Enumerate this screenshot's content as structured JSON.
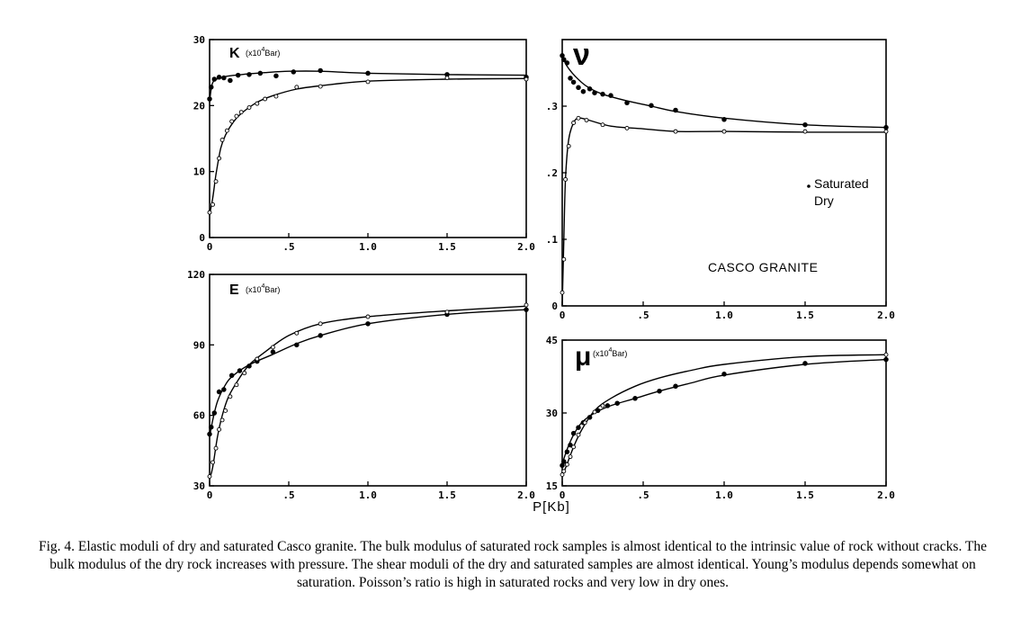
{
  "figure": {
    "xlabel": "P[Kb]",
    "legend": {
      "saturated": "Saturated",
      "dry": "Dry"
    },
    "annotation": "CASCO GRANITE",
    "caption": "Fig. 4. Elastic moduli of dry and saturated Casco granite. The bulk modulus of saturated rock samples is almost identical to the intrinsic value of rock without cracks. The bulk modulus of the dry rock increases with pressure. The shear moduli of the dry and saturated samples are almost identical. Young’s modulus depends somewhat on saturation. Poisson’s ratio is high in saturated rocks and very low in dry ones."
  },
  "chart_data": [
    {
      "id": "K",
      "type": "line",
      "symbol": "K",
      "unit_prefix": "(x10",
      "unit_exp": "4",
      "unit_suffix": "Bar)",
      "xlim": [
        0,
        2.0
      ],
      "ylim": [
        0,
        30
      ],
      "xticks": [
        0,
        0.5,
        1.0,
        1.5,
        2.0
      ],
      "xtick_labels": [
        "0",
        ".5",
        "1.0",
        "1.5",
        "2.0"
      ],
      "yticks": [
        0,
        10,
        20,
        30
      ],
      "ytick_labels": [
        "0",
        "10",
        "20",
        "30"
      ],
      "series": [
        {
          "name": "Saturated",
          "marker": "filled",
          "curve": [
            [
              0,
              20.5
            ],
            [
              0.01,
              22.5
            ],
            [
              0.03,
              23.8
            ],
            [
              0.1,
              24.4
            ],
            [
              0.2,
              24.7
            ],
            [
              0.35,
              25.0
            ],
            [
              0.5,
              25.2
            ],
            [
              0.7,
              25.2
            ],
            [
              1.0,
              24.9
            ],
            [
              1.5,
              24.7
            ],
            [
              2.0,
              24.6
            ]
          ],
          "points": [
            [
              0.0,
              21.0
            ],
            [
              0.01,
              22.8
            ],
            [
              0.03,
              24.0
            ],
            [
              0.06,
              24.3
            ],
            [
              0.09,
              24.2
            ],
            [
              0.13,
              23.8
            ],
            [
              0.18,
              24.6
            ],
            [
              0.25,
              24.7
            ],
            [
              0.32,
              24.9
            ],
            [
              0.42,
              24.5
            ],
            [
              0.53,
              25.1
            ],
            [
              0.7,
              25.3
            ],
            [
              1.0,
              24.9
            ],
            [
              1.5,
              24.7
            ],
            [
              2.0,
              24.3
            ]
          ]
        },
        {
          "name": "Dry",
          "marker": "open",
          "curve": [
            [
              0,
              3.5
            ],
            [
              0.02,
              6
            ],
            [
              0.04,
              9.5
            ],
            [
              0.07,
              13.5
            ],
            [
              0.1,
              15.5
            ],
            [
              0.15,
              17.5
            ],
            [
              0.2,
              18.8
            ],
            [
              0.3,
              20.5
            ],
            [
              0.4,
              21.5
            ],
            [
              0.55,
              22.5
            ],
            [
              0.7,
              23.0
            ],
            [
              1.0,
              23.7
            ],
            [
              1.5,
              24.0
            ],
            [
              2.0,
              24.1
            ]
          ],
          "points": [
            [
              0.0,
              3.8
            ],
            [
              0.02,
              5.0
            ],
            [
              0.04,
              8.5
            ],
            [
              0.06,
              12.0
            ],
            [
              0.08,
              14.8
            ],
            [
              0.11,
              16.2
            ],
            [
              0.14,
              17.6
            ],
            [
              0.17,
              18.4
            ],
            [
              0.2,
              19.0
            ],
            [
              0.25,
              19.7
            ],
            [
              0.3,
              20.3
            ],
            [
              0.35,
              21.0
            ],
            [
              0.42,
              21.4
            ],
            [
              0.55,
              22.8
            ],
            [
              0.7,
              22.9
            ],
            [
              1.0,
              23.6
            ],
            [
              1.5,
              24.2
            ],
            [
              2.0,
              24.0
            ]
          ]
        }
      ]
    },
    {
      "id": "nu",
      "type": "line",
      "symbol": "ν",
      "xlim": [
        0,
        2.0
      ],
      "ylim": [
        0,
        0.4
      ],
      "xticks": [
        0,
        0.5,
        1.0,
        1.5,
        2.0
      ],
      "xtick_labels": [
        "0",
        ".5",
        "1.0",
        "1.5",
        "2.0"
      ],
      "yticks": [
        0,
        0.1,
        0.2,
        0.3
      ],
      "ytick_labels": [
        "0",
        ".1",
        ".2",
        ".3"
      ],
      "series": [
        {
          "name": "Saturated",
          "marker": "filled",
          "curve": [
            [
              0,
              0.375
            ],
            [
              0.03,
              0.36
            ],
            [
              0.08,
              0.345
            ],
            [
              0.15,
              0.33
            ],
            [
              0.25,
              0.318
            ],
            [
              0.4,
              0.308
            ],
            [
              0.55,
              0.3
            ],
            [
              0.7,
              0.292
            ],
            [
              1.0,
              0.282
            ],
            [
              1.5,
              0.272
            ],
            [
              2.0,
              0.268
            ]
          ],
          "points": [
            [
              0.0,
              0.376
            ],
            [
              0.01,
              0.37
            ],
            [
              0.03,
              0.365
            ],
            [
              0.05,
              0.342
            ],
            [
              0.07,
              0.336
            ],
            [
              0.1,
              0.328
            ],
            [
              0.13,
              0.322
            ],
            [
              0.17,
              0.326
            ],
            [
              0.2,
              0.32
            ],
            [
              0.25,
              0.318
            ],
            [
              0.3,
              0.316
            ],
            [
              0.4,
              0.305
            ],
            [
              0.55,
              0.301
            ],
            [
              0.7,
              0.294
            ],
            [
              1.0,
              0.28
            ],
            [
              1.5,
              0.272
            ],
            [
              2.0,
              0.268
            ]
          ]
        },
        {
          "name": "Dry",
          "marker": "open",
          "curve": [
            [
              0,
              0.0
            ],
            [
              0.01,
              0.1
            ],
            [
              0.02,
              0.19
            ],
            [
              0.04,
              0.25
            ],
            [
              0.07,
              0.275
            ],
            [
              0.1,
              0.282
            ],
            [
              0.15,
              0.28
            ],
            [
              0.3,
              0.27
            ],
            [
              0.5,
              0.266
            ],
            [
              0.7,
              0.262
            ],
            [
              1.0,
              0.262
            ],
            [
              1.5,
              0.261
            ],
            [
              2.0,
              0.261
            ]
          ],
          "points": [
            [
              0.0,
              0.02
            ],
            [
              0.01,
              0.07
            ],
            [
              0.02,
              0.19
            ],
            [
              0.04,
              0.24
            ],
            [
              0.07,
              0.275
            ],
            [
              0.1,
              0.282
            ],
            [
              0.15,
              0.279
            ],
            [
              0.25,
              0.272
            ],
            [
              0.4,
              0.267
            ],
            [
              0.7,
              0.262
            ],
            [
              1.0,
              0.262
            ],
            [
              1.5,
              0.262
            ],
            [
              2.0,
              0.262
            ]
          ]
        }
      ]
    },
    {
      "id": "E",
      "type": "line",
      "symbol": "E",
      "unit_prefix": "(x10",
      "unit_exp": "4",
      "unit_suffix": "Bar)",
      "xlim": [
        0,
        2.0
      ],
      "ylim": [
        30,
        120
      ],
      "xticks": [
        0,
        0.5,
        1.0,
        1.5,
        2.0
      ],
      "xtick_labels": [
        "0",
        ".5",
        "1.0",
        "1.5",
        "2.0"
      ],
      "yticks": [
        30,
        60,
        90,
        120
      ],
      "ytick_labels": [
        "30",
        "60",
        "90",
        "120"
      ],
      "series": [
        {
          "name": "Saturated",
          "marker": "filled",
          "curve": [
            [
              0,
              51
            ],
            [
              0.02,
              58
            ],
            [
              0.05,
              66
            ],
            [
              0.1,
              73
            ],
            [
              0.15,
              77
            ],
            [
              0.25,
              81.5
            ],
            [
              0.4,
              86
            ],
            [
              0.55,
              90.5
            ],
            [
              0.7,
              94
            ],
            [
              1.0,
              99
            ],
            [
              1.5,
              103
            ],
            [
              2.0,
              105
            ]
          ],
          "points": [
            [
              0.0,
              52
            ],
            [
              0.01,
              55
            ],
            [
              0.03,
              61
            ],
            [
              0.06,
              70
            ],
            [
              0.09,
              71
            ],
            [
              0.14,
              77
            ],
            [
              0.19,
              79
            ],
            [
              0.25,
              81
            ],
            [
              0.3,
              83
            ],
            [
              0.4,
              87
            ],
            [
              0.55,
              90
            ],
            [
              0.7,
              94
            ],
            [
              1.0,
              99
            ],
            [
              1.5,
              103
            ],
            [
              2.0,
              105
            ]
          ]
        },
        {
          "name": "Dry",
          "marker": "open",
          "curve": [
            [
              0,
              33
            ],
            [
              0.02,
              38
            ],
            [
              0.05,
              51
            ],
            [
              0.08,
              60
            ],
            [
              0.12,
              68
            ],
            [
              0.18,
              75
            ],
            [
              0.25,
              81.5
            ],
            [
              0.35,
              87
            ],
            [
              0.5,
              94
            ],
            [
              0.7,
              99
            ],
            [
              1.0,
              102
            ],
            [
              1.5,
              104.5
            ],
            [
              2.0,
              106.5
            ]
          ],
          "points": [
            [
              0.0,
              34
            ],
            [
              0.02,
              40
            ],
            [
              0.04,
              46
            ],
            [
              0.06,
              54
            ],
            [
              0.08,
              58
            ],
            [
              0.1,
              62
            ],
            [
              0.13,
              68
            ],
            [
              0.17,
              73
            ],
            [
              0.22,
              78
            ],
            [
              0.3,
              84
            ],
            [
              0.4,
              89
            ],
            [
              0.55,
              95
            ],
            [
              0.7,
              99
            ],
            [
              1.0,
              102
            ],
            [
              1.5,
              104
            ],
            [
              2.0,
              107
            ]
          ]
        }
      ]
    },
    {
      "id": "mu",
      "type": "line",
      "symbol": "μ",
      "unit_prefix": "(x10",
      "unit_exp": "4",
      "unit_suffix": "Bar)",
      "xlim": [
        0,
        2.0
      ],
      "ylim": [
        15,
        45
      ],
      "xticks": [
        0,
        0.5,
        1.0,
        1.5,
        2.0
      ],
      "xtick_labels": [
        "0",
        ".5",
        "1.0",
        "1.5",
        "2.0"
      ],
      "yticks": [
        15,
        30,
        45
      ],
      "ytick_labels": [
        "15",
        "30",
        "45"
      ],
      "series": [
        {
          "name": "Saturated",
          "marker": "filled",
          "curve": [
            [
              0,
              19.5
            ],
            [
              0.03,
              22.5
            ],
            [
              0.07,
              25.5
            ],
            [
              0.12,
              28
            ],
            [
              0.2,
              30
            ],
            [
              0.3,
              31.5
            ],
            [
              0.45,
              33
            ],
            [
              0.6,
              34.5
            ],
            [
              0.8,
              36.2
            ],
            [
              1.0,
              37.8
            ],
            [
              1.5,
              40
            ],
            [
              2.0,
              41
            ]
          ],
          "points": [
            [
              0.0,
              19.2
            ],
            [
              0.01,
              20.0
            ],
            [
              0.03,
              22.0
            ],
            [
              0.05,
              23.4
            ],
            [
              0.07,
              25.8
            ],
            [
              0.1,
              27.0
            ],
            [
              0.13,
              28.0
            ],
            [
              0.17,
              29.1
            ],
            [
              0.22,
              30.5
            ],
            [
              0.28,
              31.5
            ],
            [
              0.34,
              32.0
            ],
            [
              0.45,
              33.0
            ],
            [
              0.6,
              34.5
            ],
            [
              0.7,
              35.5
            ],
            [
              1.0,
              38.0
            ],
            [
              1.5,
              40.2
            ],
            [
              2.0,
              41.0
            ]
          ]
        },
        {
          "name": "Dry",
          "marker": "open",
          "curve": [
            [
              0,
              17
            ],
            [
              0.03,
              19.5
            ],
            [
              0.07,
              23
            ],
            [
              0.12,
              26.5
            ],
            [
              0.2,
              30.5
            ],
            [
              0.3,
              33
            ],
            [
              0.45,
              35.5
            ],
            [
              0.6,
              37.2
            ],
            [
              0.8,
              38.8
            ],
            [
              1.0,
              40
            ],
            [
              1.5,
              41.6
            ],
            [
              2.0,
              42
            ]
          ],
          "points": [
            [
              0.0,
              17.3
            ],
            [
              0.01,
              18.0
            ],
            [
              0.03,
              19.4
            ],
            [
              0.05,
              21.0
            ],
            [
              0.07,
              23.0
            ],
            [
              0.1,
              25.5
            ],
            [
              0.14,
              28.0
            ],
            [
              0.2,
              30.2
            ],
            [
              0.25,
              31.5
            ],
            [
              2.0,
              42.0
            ]
          ]
        }
      ]
    }
  ]
}
